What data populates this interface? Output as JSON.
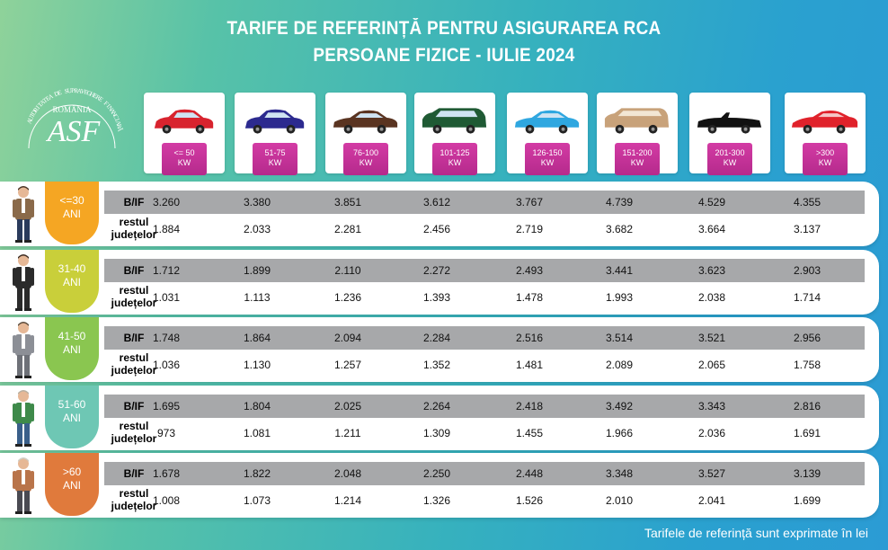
{
  "title_line1": "TARIFE DE REFERINȚĂ PENTRU ASIGURAREA RCA",
  "title_line2": "PERSOANE FIZICE - IULIE 2024",
  "logo": {
    "country": "ROMÂNIA",
    "arc_text": "AUTORITATEA DE SUPRAVEGHERE FINANCIARĂ",
    "monogram": "ASF"
  },
  "power_categories": [
    {
      "label": "<= 50\nKW",
      "car_color": "#d8232e",
      "car_type": "hatch"
    },
    {
      "label": "51-75\nKW",
      "car_color": "#2c2a8f",
      "car_type": "hatch"
    },
    {
      "label": "76-100\nKW",
      "car_color": "#5a3421",
      "car_type": "sedan"
    },
    {
      "label": "101-125\nKW",
      "car_color": "#1f5a34",
      "car_type": "van"
    },
    {
      "label": "126-150\nKW",
      "car_color": "#2fa7e0",
      "car_type": "sedan"
    },
    {
      "label": "151-200\nKW",
      "car_color": "#c8a27a",
      "car_type": "suv"
    },
    {
      "label": "201-300\nKW",
      "car_color": "#111111",
      "car_type": "cabrio"
    },
    {
      "label": ">300\nKW",
      "car_color": "#e0222b",
      "car_type": "sport"
    }
  ],
  "row_labels": {
    "bif": "B/IF",
    "rest": "restul\njudețelor"
  },
  "groups": [
    {
      "age": "<=30\nANI",
      "badge_color": "#f5a623",
      "person": {
        "hair": "#4a3426",
        "jacket": "#8a6a4a",
        "pants": "#2a3b5c"
      },
      "bif": [
        "3.260",
        "3.380",
        "3.851",
        "3.612",
        "3.767",
        "4.739",
        "4.529",
        "4.355"
      ],
      "rest": [
        "1.884",
        "2.033",
        "2.281",
        "2.456",
        "2.719",
        "3.682",
        "3.664",
        "3.137"
      ]
    },
    {
      "age": "31-40\nANI",
      "badge_color": "#c9cf3a",
      "person": {
        "hair": "#3a2a20",
        "jacket": "#2b2b2b",
        "pants": "#2b2b2b"
      },
      "bif": [
        "1.712",
        "1.899",
        "2.110",
        "2.272",
        "2.493",
        "3.441",
        "3.623",
        "2.903"
      ],
      "rest": [
        "1.031",
        "1.113",
        "1.236",
        "1.393",
        "1.478",
        "1.993",
        "2.038",
        "1.714"
      ]
    },
    {
      "age": "41-50\nANI",
      "badge_color": "#8ac650",
      "person": {
        "hair": "#5a4a3a",
        "jacket": "#8c8f96",
        "pants": "#6e7178"
      },
      "bif": [
        "1.748",
        "1.864",
        "2.094",
        "2.284",
        "2.516",
        "3.514",
        "3.521",
        "2.956"
      ],
      "rest": [
        "1.036",
        "1.130",
        "1.257",
        "1.352",
        "1.481",
        "2.089",
        "2.065",
        "1.758"
      ]
    },
    {
      "age": "51-60\nANI",
      "badge_color": "#6ec7b4",
      "person": {
        "hair": "#b8b0a0",
        "jacket": "#3e8a4a",
        "pants": "#3a5f8a"
      },
      "bif": [
        "1.695",
        "1.804",
        "2.025",
        "2.264",
        "2.418",
        "3.492",
        "3.343",
        "2.816"
      ],
      "rest": [
        "973",
        "1.081",
        "1.211",
        "1.309",
        "1.455",
        "1.966",
        "2.036",
        "1.691"
      ]
    },
    {
      "age": ">60\nANI",
      "badge_color": "#e07a3c",
      "person": {
        "hair": "#d0cfc8",
        "jacket": "#b9744a",
        "pants": "#4a4a52"
      },
      "bif": [
        "1.678",
        "1.822",
        "2.048",
        "2.250",
        "2.448",
        "3.348",
        "3.527",
        "3.139"
      ],
      "rest": [
        "1.008",
        "1.073",
        "1.214",
        "1.326",
        "1.526",
        "2.010",
        "2.041",
        "1.699"
      ]
    }
  ],
  "footnote": "Tarifele de referință sunt exprimate în lei"
}
